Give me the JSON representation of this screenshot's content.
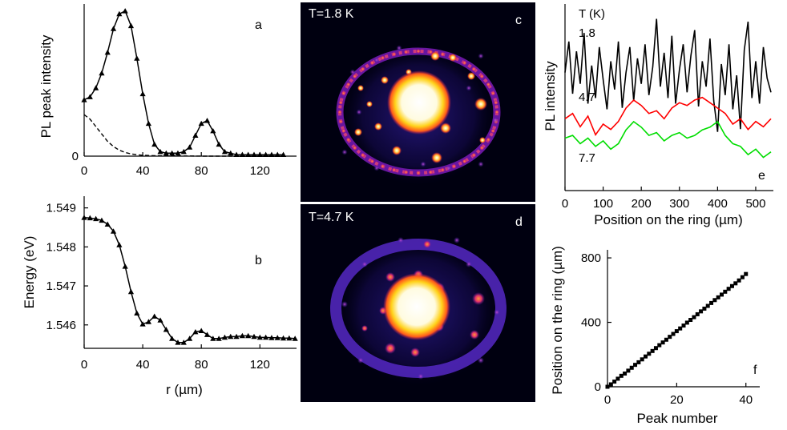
{
  "panel_a": {
    "letter": "a",
    "ylabel": "PL peak intensity",
    "y_zero_label": "0"
  },
  "panel_b": {
    "letter": "b",
    "ylabel": "Energy (eV)",
    "xlabel": "r (µm)"
  },
  "panel_c": {
    "letter": "c",
    "label": "T=1.8 K"
  },
  "panel_d": {
    "letter": "d",
    "label": "T=4.7 K"
  },
  "panel_e": {
    "letter": "e",
    "ylabel": "PL intensity",
    "xlabel": "Position on the ring (µm)",
    "legend_title": "T (K)",
    "series": [
      {
        "name": "1.8",
        "color": "#000000"
      },
      {
        "name": "4.7",
        "color": "#ff0000"
      },
      {
        "name": "7.7",
        "color": "#00dd00"
      }
    ]
  },
  "panel_f": {
    "letter": "f",
    "ylabel": "Position on the ring (µm)",
    "xlabel": "Peak number"
  },
  "chart_data": [
    {
      "panel": "a",
      "type": "line",
      "xlabel": "",
      "ylabel": "PL peak intensity",
      "xlim": [
        0,
        145
      ],
      "ylim": [
        0,
        1.0
      ],
      "xticks": [
        0,
        40,
        80,
        120
      ],
      "yticks": [
        0
      ],
      "series": [
        {
          "style": "solid-triangles",
          "x": [
            0,
            4,
            8,
            12,
            16,
            20,
            24,
            28,
            32,
            36,
            40,
            44,
            48,
            52,
            56,
            60,
            64,
            68,
            72,
            76,
            80,
            84,
            88,
            92,
            96,
            100,
            104,
            108,
            112,
            116,
            120,
            124,
            128,
            132,
            136
          ],
          "y": [
            0.38,
            0.4,
            0.46,
            0.56,
            0.7,
            0.86,
            0.96,
            0.98,
            0.88,
            0.66,
            0.42,
            0.22,
            0.08,
            0.03,
            0.02,
            0.02,
            0.02,
            0.03,
            0.06,
            0.14,
            0.22,
            0.24,
            0.17,
            0.08,
            0.03,
            0.02,
            0.01,
            0.01,
            0.01,
            0.01,
            0.01,
            0.01,
            0.01,
            0.01,
            0.01
          ]
        },
        {
          "style": "dashed",
          "x": [
            0,
            4,
            8,
            12,
            16,
            20,
            24,
            28,
            32,
            36,
            40,
            48,
            56,
            64,
            72,
            80,
            88,
            96,
            104,
            120,
            136
          ],
          "y": [
            0.28,
            0.25,
            0.2,
            0.15,
            0.1,
            0.065,
            0.04,
            0.025,
            0.015,
            0.01,
            0.006,
            0.003,
            0.002,
            0.001,
            0.001,
            0,
            0,
            0,
            0,
            0,
            0
          ]
        }
      ]
    },
    {
      "panel": "b",
      "type": "line",
      "xlabel": "r (µm)",
      "ylabel": "Energy (eV)",
      "xlim": [
        0,
        145
      ],
      "ylim": [
        1.5454,
        1.5493
      ],
      "xticks": [
        0,
        40,
        80,
        120
      ],
      "yticks": [
        1.546,
        1.547,
        1.548,
        1.549
      ],
      "series": [
        {
          "style": "solid-triangles",
          "x": [
            0,
            4,
            8,
            12,
            16,
            20,
            24,
            28,
            32,
            36,
            40,
            44,
            48,
            52,
            56,
            60,
            64,
            68,
            72,
            76,
            80,
            84,
            88,
            92,
            96,
            100,
            104,
            108,
            112,
            116,
            120,
            124,
            128,
            132,
            136,
            140,
            144
          ],
          "y": [
            1.54875,
            1.54874,
            1.54872,
            1.54868,
            1.54858,
            1.5484,
            1.54805,
            1.5475,
            1.54685,
            1.5463,
            1.54602,
            1.54608,
            1.54622,
            1.54612,
            1.54588,
            1.54565,
            1.54555,
            1.54555,
            1.54565,
            1.54582,
            1.54585,
            1.54575,
            1.54565,
            1.54565,
            1.54568,
            1.5457,
            1.5457,
            1.54572,
            1.54572,
            1.5457,
            1.54568,
            1.54568,
            1.54567,
            1.54567,
            1.54566,
            1.54566,
            1.54565
          ]
        }
      ]
    },
    {
      "panel": "e",
      "type": "line",
      "xlabel": "Position on the ring (µm)",
      "ylabel": "PL intensity",
      "xlim": [
        0,
        540
      ],
      "xticks": [
        0,
        100,
        200,
        300,
        400,
        500
      ],
      "series": [
        {
          "name": "1.8",
          "x": [
            0,
            10,
            20,
            30,
            40,
            50,
            60,
            70,
            80,
            90,
            100,
            110,
            120,
            130,
            140,
            150,
            160,
            170,
            180,
            190,
            200,
            210,
            220,
            230,
            240,
            250,
            260,
            270,
            280,
            290,
            300,
            310,
            320,
            330,
            340,
            350,
            360,
            370,
            380,
            390,
            400,
            410,
            420,
            430,
            440,
            450,
            460,
            470,
            480,
            490,
            500,
            510,
            520,
            530,
            540
          ],
          "y": [
            6.0,
            8.2,
            4.5,
            7.5,
            5.2,
            8.8,
            3.8,
            6.5,
            4.2,
            7.8,
            5.5,
            3.4,
            6.8,
            4.8,
            8.2,
            3.5,
            6.0,
            7.8,
            4.0,
            7.0,
            5.2,
            8.0,
            4.4,
            6.4,
            9.8,
            5.0,
            7.4,
            4.2,
            8.6,
            3.8,
            6.2,
            8.0,
            4.6,
            7.2,
            9.0,
            3.6,
            6.8,
            5.0,
            8.4,
            4.0,
            1.8,
            6.6,
            4.4,
            8.0,
            3.4,
            5.8,
            2.0,
            7.6,
            9.6,
            4.2,
            6.8,
            3.8,
            7.8,
            5.6,
            4.6
          ]
        },
        {
          "name": "4.7",
          "x": [
            0,
            20,
            40,
            60,
            80,
            100,
            120,
            140,
            160,
            180,
            200,
            220,
            240,
            260,
            280,
            300,
            320,
            340,
            360,
            380,
            400,
            420,
            440,
            460,
            480,
            500,
            520,
            540
          ],
          "y": [
            2.8,
            3.0,
            2.5,
            2.9,
            2.2,
            2.6,
            2.4,
            2.7,
            3.2,
            3.5,
            3.3,
            3.0,
            3.1,
            2.8,
            3.2,
            3.4,
            3.3,
            3.5,
            3.6,
            3.4,
            3.2,
            3.0,
            2.6,
            2.8,
            2.4,
            2.7,
            2.5,
            2.8
          ]
        },
        {
          "name": "7.7",
          "x": [
            0,
            20,
            40,
            60,
            80,
            100,
            120,
            140,
            160,
            180,
            200,
            220,
            240,
            260,
            280,
            300,
            320,
            340,
            360,
            380,
            400,
            420,
            440,
            460,
            480,
            500,
            520,
            540
          ],
          "y": [
            1.5,
            1.6,
            1.3,
            1.5,
            1.2,
            1.4,
            1.1,
            1.3,
            1.8,
            2.1,
            1.9,
            1.6,
            1.7,
            1.4,
            1.6,
            1.7,
            1.5,
            1.6,
            1.8,
            1.9,
            2.1,
            1.6,
            1.3,
            1.2,
            0.9,
            1.1,
            0.8,
            1.0
          ]
        }
      ]
    },
    {
      "panel": "f",
      "type": "scatter",
      "xlabel": "Peak number",
      "ylabel": "Position on the ring (µm)",
      "xlim": [
        0,
        44
      ],
      "ylim": [
        0,
        850
      ],
      "xticks": [
        0,
        20,
        40
      ],
      "yticks": [
        0,
        400,
        800
      ],
      "x": [
        0,
        1,
        2,
        3,
        4,
        5,
        6,
        7,
        8,
        9,
        10,
        11,
        12,
        13,
        14,
        15,
        16,
        17,
        18,
        19,
        20,
        21,
        22,
        23,
        24,
        25,
        26,
        27,
        28,
        29,
        30,
        31,
        32,
        33,
        34,
        35,
        36,
        37,
        38,
        39,
        40
      ],
      "y": [
        0,
        15,
        32,
        50,
        68,
        82,
        100,
        118,
        136,
        152,
        170,
        188,
        205,
        222,
        240,
        258,
        275,
        292,
        310,
        328,
        345,
        362,
        380,
        398,
        415,
        432,
        450,
        468,
        485,
        502,
        520,
        538,
        555,
        572,
        590,
        608,
        625,
        642,
        660,
        680,
        700
      ]
    }
  ]
}
